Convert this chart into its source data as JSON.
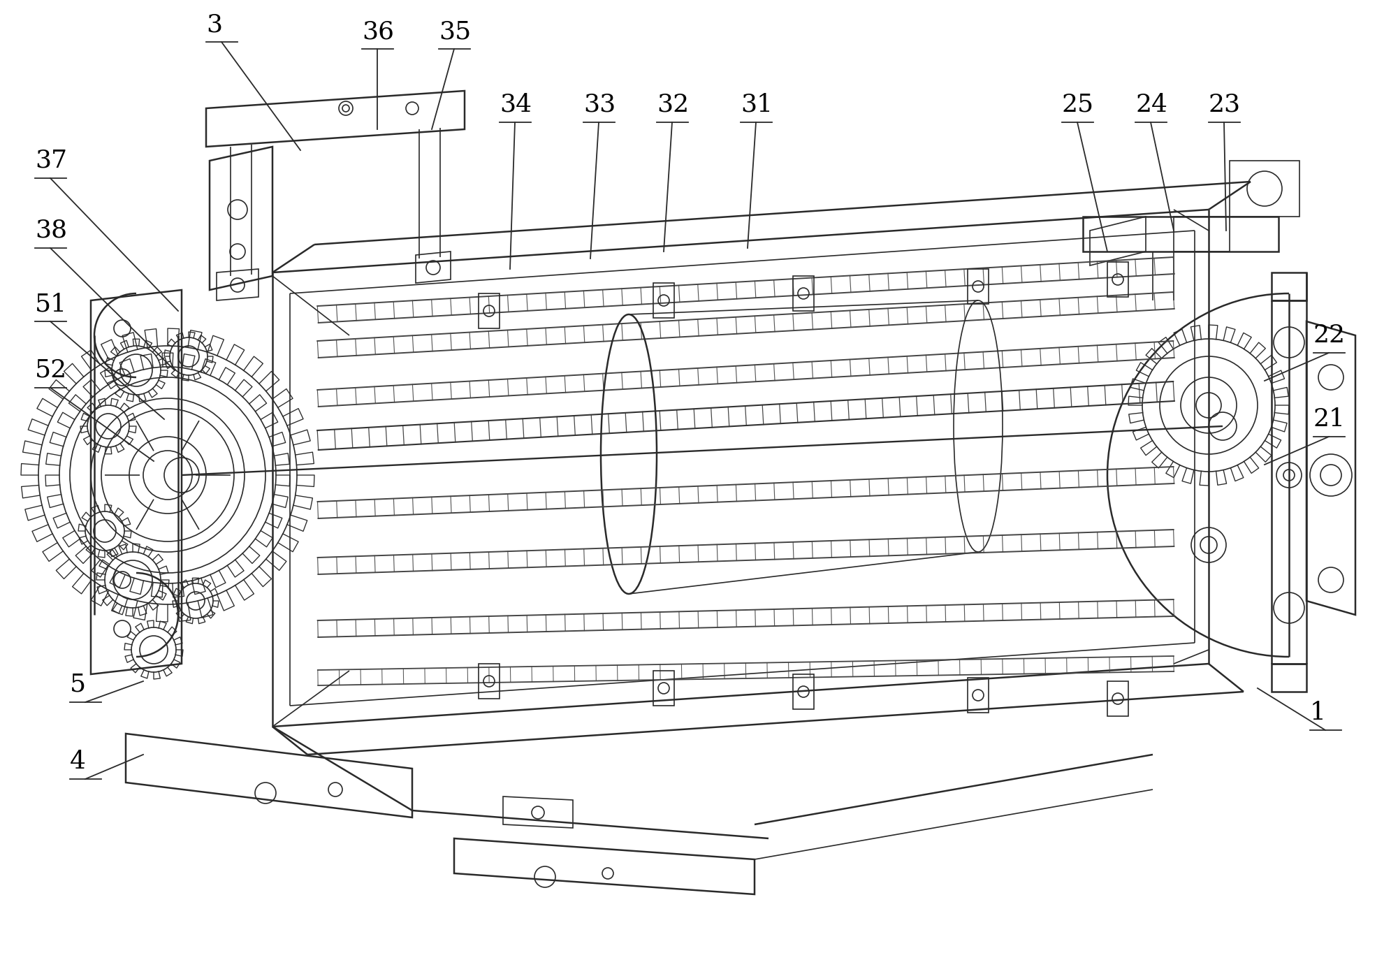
{
  "background_color": "#ffffff",
  "line_color": "#2a2a2a",
  "label_color": "#000000",
  "label_fontsize": 26,
  "leader_color": "#2a2a2a",
  "figsize": [
    19.91,
    13.64
  ],
  "dpi": 100,
  "labels_data": [
    [
      "1",
      1875,
      1045,
      1800,
      985,
      true
    ],
    [
      "3",
      295,
      60,
      430,
      215,
      true
    ],
    [
      "4",
      100,
      1115,
      205,
      1080,
      true
    ],
    [
      "5",
      100,
      1005,
      205,
      975,
      true
    ],
    [
      "21",
      1880,
      625,
      1810,
      665,
      true
    ],
    [
      "22",
      1880,
      505,
      1810,
      545,
      true
    ],
    [
      "23",
      1730,
      175,
      1755,
      330,
      true
    ],
    [
      "24",
      1625,
      175,
      1680,
      330,
      true
    ],
    [
      "25",
      1520,
      175,
      1585,
      360,
      true
    ],
    [
      "31",
      1060,
      175,
      1070,
      355,
      true
    ],
    [
      "32",
      940,
      175,
      950,
      360,
      true
    ],
    [
      "33",
      835,
      175,
      845,
      370,
      true
    ],
    [
      "34",
      715,
      175,
      730,
      385,
      true
    ],
    [
      "35",
      628,
      70,
      618,
      185,
      true
    ],
    [
      "36",
      518,
      70,
      540,
      185,
      true
    ],
    [
      "37",
      50,
      255,
      255,
      445,
      true
    ],
    [
      "38",
      50,
      355,
      250,
      530,
      true
    ],
    [
      "51",
      50,
      460,
      235,
      600,
      true
    ],
    [
      "52",
      50,
      555,
      220,
      660,
      true
    ]
  ]
}
